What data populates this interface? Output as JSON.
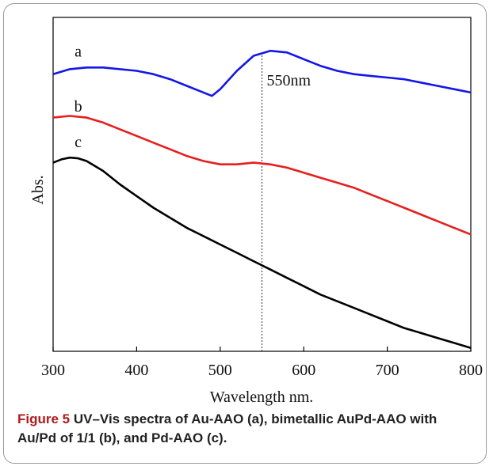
{
  "caption": {
    "label": "Figure 5",
    "text": " UV–Vis spectra of Au-AAO (a), bimetallic AuPd-AAO with Au/Pd of 1/1 (b), and Pd-AAO (c)."
  },
  "chart_data": {
    "type": "line",
    "title": "",
    "xlabel": "Wavelength nm.",
    "ylabel": "Abs.",
    "xlim": [
      300,
      800
    ],
    "ylim": [
      0,
      10
    ],
    "xticks": [
      300,
      400,
      500,
      600,
      700,
      800
    ],
    "grid": false,
    "reference_line": {
      "x": 550,
      "label": "550nm"
    },
    "series": [
      {
        "name": "a",
        "color": "#1515e8",
        "x": [
          300,
          320,
          340,
          360,
          380,
          400,
          420,
          440,
          460,
          480,
          490,
          500,
          520,
          540,
          560,
          580,
          600,
          620,
          640,
          660,
          680,
          700,
          720,
          740,
          760,
          780,
          800
        ],
        "y": [
          8.3,
          8.45,
          8.5,
          8.5,
          8.45,
          8.4,
          8.3,
          8.15,
          7.95,
          7.75,
          7.65,
          7.85,
          8.4,
          8.85,
          9.0,
          8.95,
          8.75,
          8.55,
          8.4,
          8.3,
          8.25,
          8.2,
          8.15,
          8.05,
          7.95,
          7.85,
          7.75
        ]
      },
      {
        "name": "b",
        "color": "#e61e1e",
        "x": [
          300,
          320,
          340,
          360,
          380,
          400,
          420,
          440,
          460,
          480,
          500,
          520,
          540,
          560,
          580,
          600,
          620,
          640,
          660,
          680,
          700,
          720,
          740,
          760,
          780,
          800
        ],
        "y": [
          7.0,
          7.05,
          7.0,
          6.85,
          6.65,
          6.45,
          6.25,
          6.05,
          5.85,
          5.7,
          5.6,
          5.6,
          5.65,
          5.6,
          5.5,
          5.35,
          5.2,
          5.05,
          4.9,
          4.7,
          4.5,
          4.3,
          4.1,
          3.9,
          3.7,
          3.5
        ]
      },
      {
        "name": "c",
        "color": "#000000",
        "x": [
          300,
          310,
          320,
          330,
          340,
          360,
          380,
          400,
          420,
          440,
          460,
          480,
          500,
          520,
          540,
          560,
          580,
          600,
          620,
          640,
          660,
          680,
          700,
          720,
          740,
          760,
          780,
          800
        ],
        "y": [
          5.65,
          5.75,
          5.8,
          5.78,
          5.7,
          5.4,
          5.0,
          4.65,
          4.3,
          4.0,
          3.7,
          3.45,
          3.2,
          2.95,
          2.7,
          2.45,
          2.2,
          1.95,
          1.7,
          1.5,
          1.3,
          1.1,
          0.9,
          0.7,
          0.55,
          0.4,
          0.25,
          0.1
        ]
      }
    ]
  }
}
